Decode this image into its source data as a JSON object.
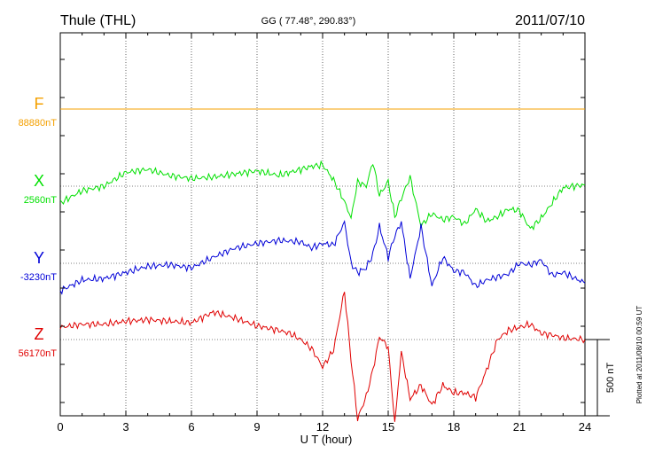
{
  "header": {
    "station": "Thule (THL)",
    "coords": "GG ( 77.48°, 290.83°)",
    "date": "2011/07/10"
  },
  "plot_note": "Plotted at 2011/08/10 00:59 UT",
  "chart_data": {
    "type": "line",
    "title": "Thule (THL)",
    "xlabel": "U T (hour)",
    "xlim": [
      0,
      24
    ],
    "x_ticks": [
      "0",
      "3",
      "6",
      "9",
      "12",
      "15",
      "18",
      "21",
      "24"
    ],
    "grid": true,
    "scale_bar": {
      "label": "500 nT",
      "value_nT": 500
    },
    "baseline_units": "nT",
    "series": [
      {
        "name": "F",
        "baseline_label": "88880nT",
        "color": "#f4a000",
        "x": [
          0,
          24
        ],
        "y": [
          0,
          0
        ]
      },
      {
        "name": "X",
        "baseline_label": "2560nT",
        "color": "#00e000",
        "x": [
          0,
          1,
          2,
          3,
          4,
          5,
          6,
          7,
          8,
          9,
          10,
          11,
          11.5,
          12,
          12.5,
          13,
          13.3,
          13.6,
          14,
          14.3,
          14.6,
          15,
          15.3,
          15.6,
          16,
          16.5,
          17,
          17.5,
          18,
          18.5,
          19,
          19.5,
          20,
          20.5,
          21,
          21.5,
          22,
          22.5,
          23,
          24
        ],
        "y": [
          -110,
          -30,
          0,
          90,
          110,
          70,
          50,
          60,
          80,
          100,
          70,
          110,
          130,
          140,
          40,
          -100,
          -210,
          30,
          0,
          160,
          -60,
          30,
          -200,
          -80,
          60,
          -260,
          -180,
          -220,
          -200,
          -250,
          -150,
          -230,
          -200,
          -150,
          -160,
          -280,
          -210,
          -110,
          -10,
          10
        ]
      },
      {
        "name": "Y",
        "baseline_label": "-3230nT",
        "color": "#0000d8",
        "x": [
          0,
          1,
          2,
          3,
          4,
          5,
          6,
          7,
          8,
          9,
          10,
          11,
          11.5,
          12,
          12.5,
          13,
          13.3,
          13.6,
          14,
          14.3,
          14.6,
          15,
          15.3,
          15.6,
          16,
          16.5,
          17,
          17.5,
          18,
          18.5,
          19,
          19.5,
          20,
          20.5,
          21,
          21.5,
          22,
          22.5,
          23,
          24
        ],
        "y": [
          -180,
          -110,
          -100,
          -60,
          -20,
          -10,
          -30,
          40,
          100,
          130,
          150,
          140,
          100,
          130,
          120,
          270,
          0,
          -60,
          -30,
          60,
          240,
          40,
          180,
          270,
          -100,
          240,
          -150,
          40,
          -50,
          -60,
          -150,
          -110,
          -90,
          -70,
          0,
          -10,
          20,
          -80,
          -60,
          -130
        ]
      },
      {
        "name": "Z",
        "baseline_label": "56170nT",
        "color": "#e00000",
        "x": [
          0,
          1,
          2,
          3,
          4,
          5,
          6,
          7,
          8,
          9,
          10,
          10.5,
          11,
          11.5,
          12,
          12.5,
          13,
          13.3,
          13.6,
          14,
          14.3,
          14.6,
          15,
          15.3,
          15.6,
          16,
          16.5,
          17,
          17.5,
          18,
          18.5,
          19,
          19.5,
          20,
          20.5,
          21,
          21.5,
          22,
          22.5,
          23,
          24
        ],
        "y": [
          80,
          100,
          100,
          120,
          130,
          120,
          110,
          180,
          140,
          90,
          60,
          40,
          0,
          -60,
          -180,
          -70,
          320,
          -130,
          -520,
          -370,
          -200,
          20,
          -50,
          -550,
          -80,
          -390,
          -300,
          -430,
          -300,
          -350,
          -350,
          -380,
          -200,
          0,
          60,
          80,
          100,
          40,
          30,
          10,
          0
        ]
      }
    ]
  }
}
